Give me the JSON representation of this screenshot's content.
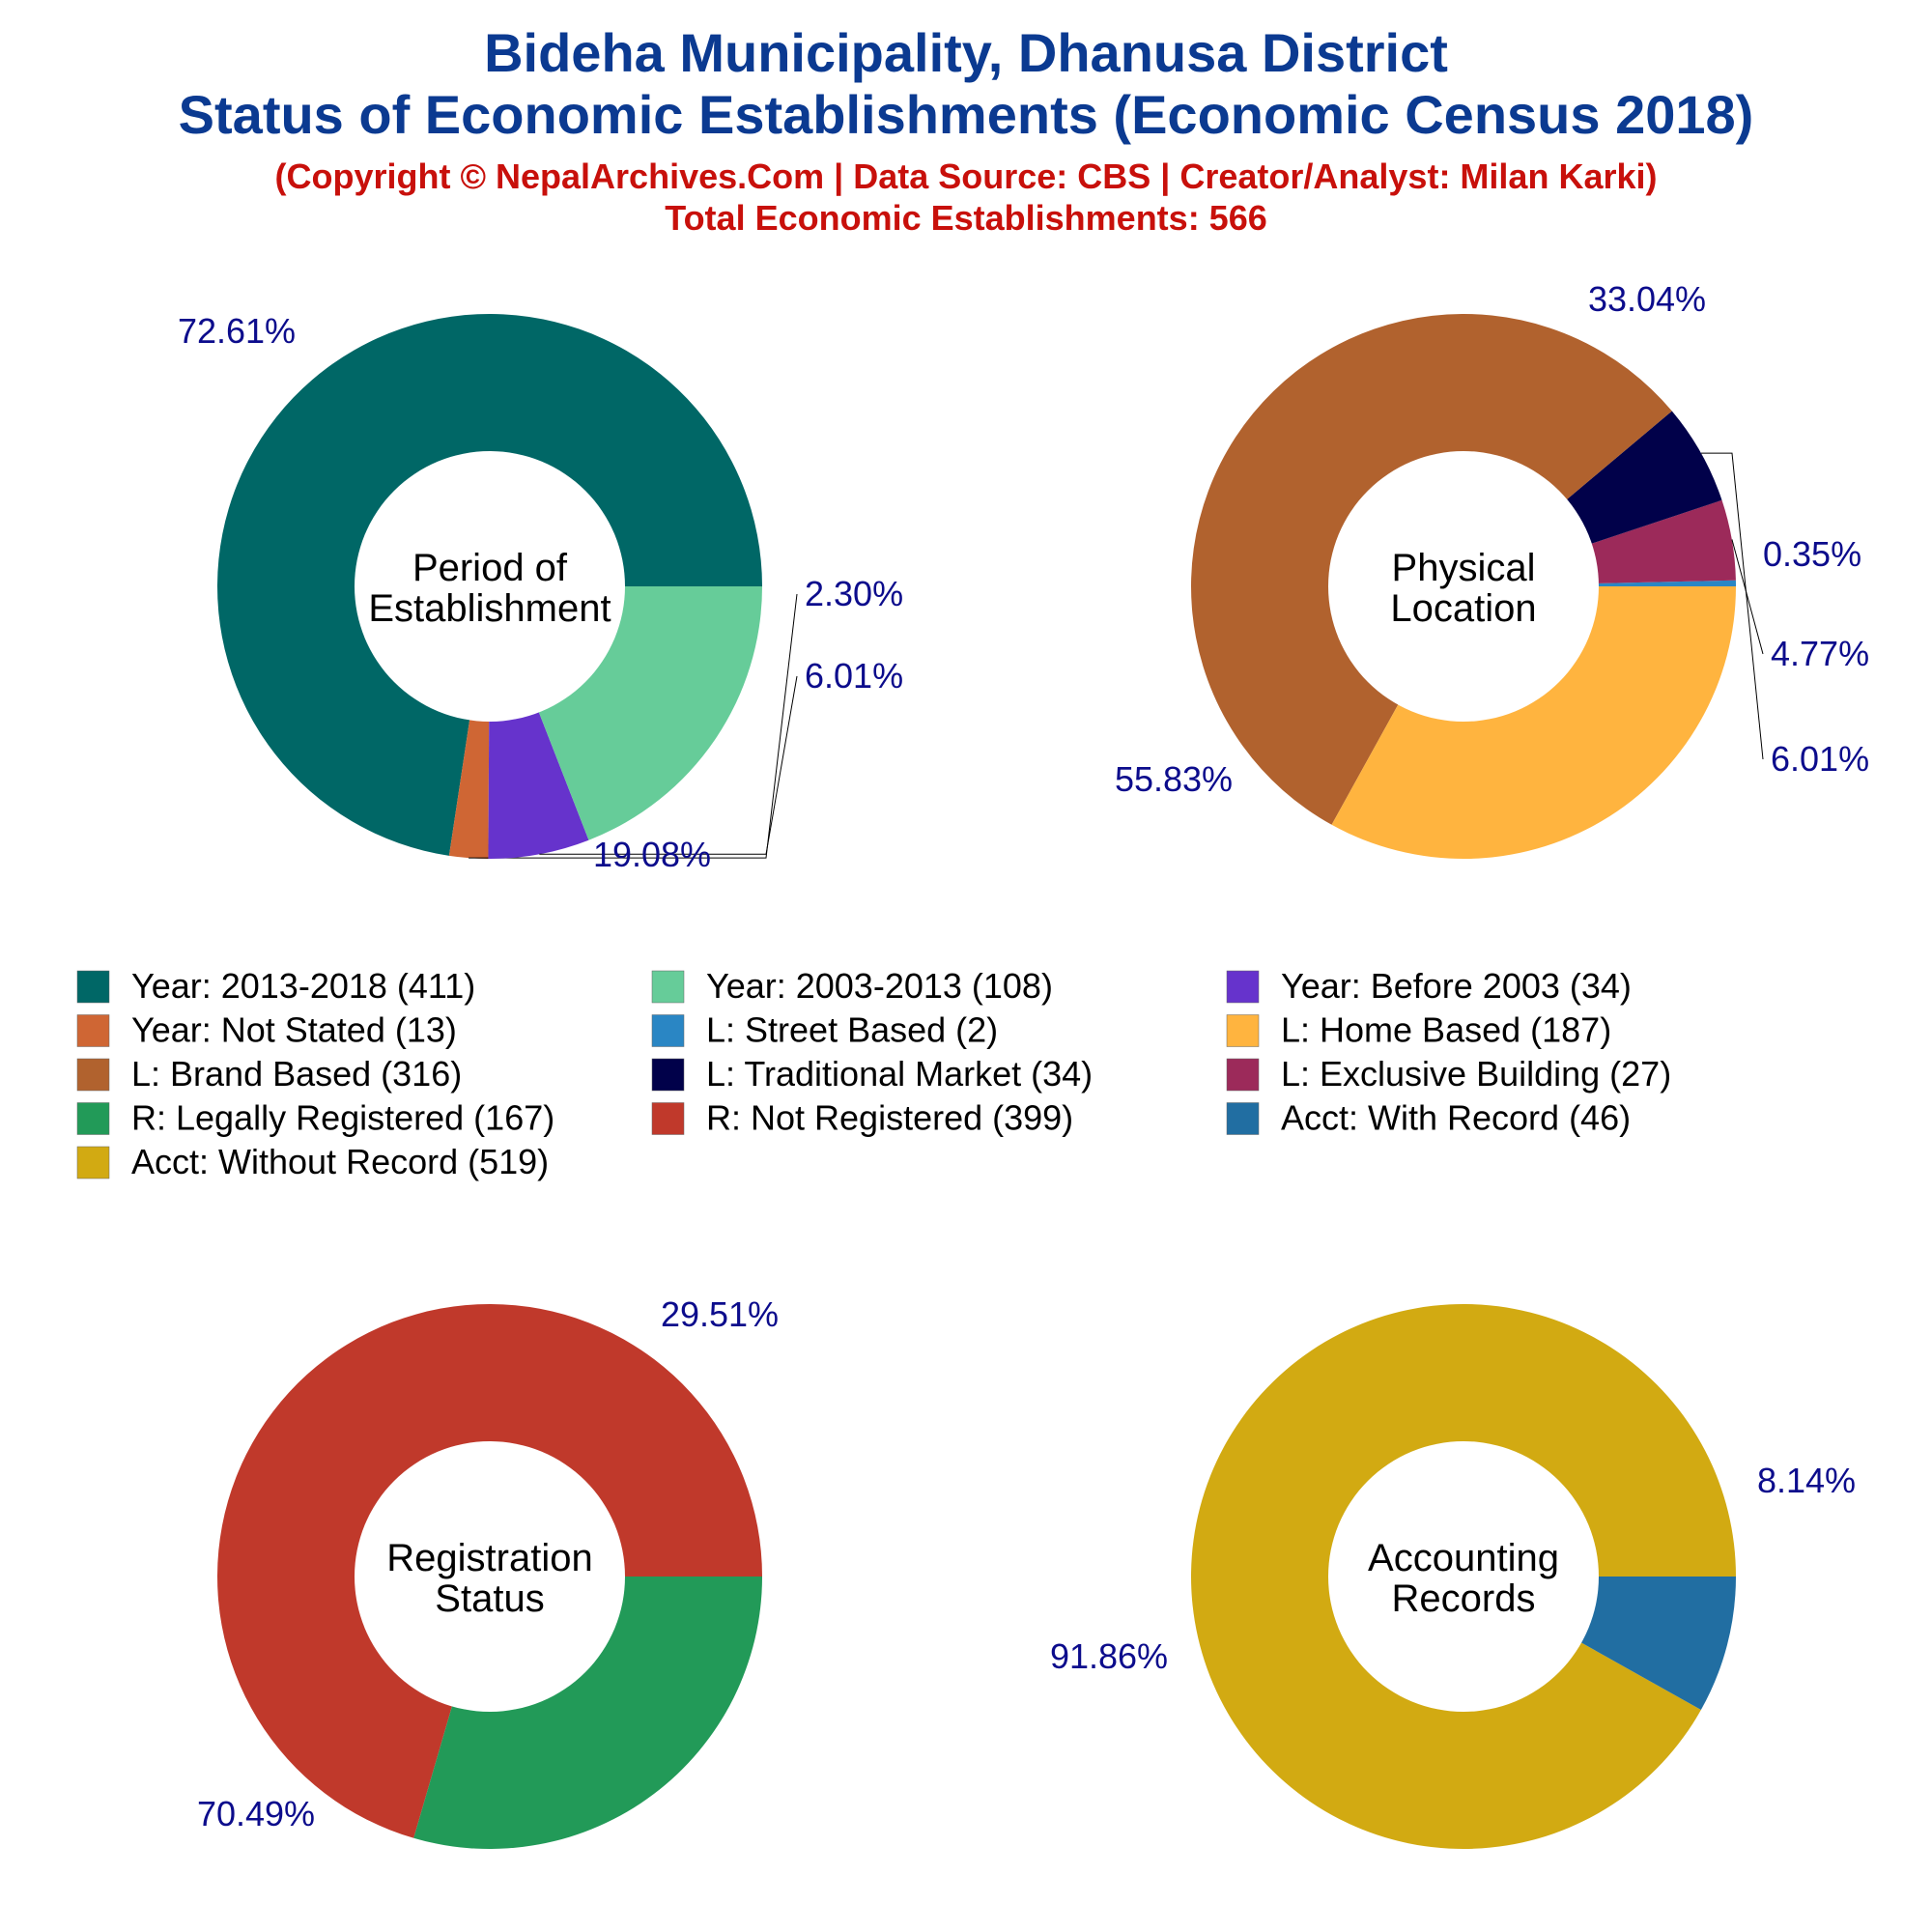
{
  "header": {
    "title_line1": "Bideha Municipality, Dhanusa District",
    "title_line2": "Status of Economic Establishments (Economic Census 2018)",
    "copyright": "(Copyright © NepalArchives.Com | Data Source: CBS | Creator/Analyst: Milan Karki)",
    "total": "Total Economic Establishments: 566"
  },
  "chart_data": [
    {
      "type": "pie",
      "center_label": [
        "Period of",
        "Establishment"
      ],
      "slices": [
        {
          "legend": "Year: 2013-2018 (411)",
          "value": 411,
          "pct_label": "72.61%",
          "color": "#006766"
        },
        {
          "legend": "Year: Not Stated (13)",
          "value": 13,
          "pct_label": "2.30%",
          "color": "#cf6634"
        },
        {
          "legend": "Year: Before 2003 (34)",
          "value": 34,
          "pct_label": "6.01%",
          "color": "#6633cc"
        },
        {
          "legend": "Year: 2003-2013 (108)",
          "value": 108,
          "pct_label": "19.08%",
          "color": "#66cc99"
        }
      ]
    },
    {
      "type": "pie",
      "center_label": [
        "Physical",
        "Location"
      ],
      "slices": [
        {
          "legend": "L: Street Based (2)",
          "value": 2,
          "pct_label": "0.35%",
          "color": "#2a86c4"
        },
        {
          "legend": "L: Exclusive Building (27)",
          "value": 27,
          "pct_label": "4.77%",
          "color": "#9c2a5a"
        },
        {
          "legend": "L: Traditional Market (34)",
          "value": 34,
          "pct_label": "6.01%",
          "color": "#01014a"
        },
        {
          "legend": "L: Brand Based (316)",
          "value": 316,
          "pct_label": "55.83%",
          "color": "#b1622e"
        },
        {
          "legend": "L: Home Based (187)",
          "value": 187,
          "pct_label": "33.04%",
          "color": "#ffb43f"
        }
      ]
    },
    {
      "type": "pie",
      "center_label": [
        "Registration",
        "Status"
      ],
      "slices": [
        {
          "legend": "R: Not Registered (399)",
          "value": 399,
          "pct_label": "70.49%",
          "color": "#c0392b"
        },
        {
          "legend": "R: Legally Registered (167)",
          "value": 167,
          "pct_label": "29.51%",
          "color": "#229a58"
        }
      ]
    },
    {
      "type": "pie",
      "center_label": [
        "Accounting",
        "Records"
      ],
      "slices": [
        {
          "legend": "Acct: Without Record (519)",
          "value": 519,
          "pct_label": "91.86%",
          "color": "#d2aa12"
        },
        {
          "legend": "Acct: With Record (46)",
          "value": 46,
          "pct_label": "8.14%",
          "color": "#216ea2"
        }
      ]
    }
  ],
  "legend": [
    {
      "label": "Year: 2013-2018 (411)",
      "color": "#006766"
    },
    {
      "label": "Year: 2003-2013 (108)",
      "color": "#66cc99"
    },
    {
      "label": "Year: Before 2003 (34)",
      "color": "#6633cc"
    },
    {
      "label": "Year: Not Stated (13)",
      "color": "#cf6634"
    },
    {
      "label": "L: Street Based (2)",
      "color": "#2a86c4"
    },
    {
      "label": "L: Home Based (187)",
      "color": "#ffb43f"
    },
    {
      "label": "L: Brand Based (316)",
      "color": "#b1622e"
    },
    {
      "label": "L: Traditional Market (34)",
      "color": "#01014a"
    },
    {
      "label": "L: Exclusive Building (27)",
      "color": "#9c2a5a"
    },
    {
      "label": "R: Legally Registered (167)",
      "color": "#229a58"
    },
    {
      "label": "R: Not Registered (399)",
      "color": "#c0392b"
    },
    {
      "label": "Acct: With Record (46)",
      "color": "#216ea2"
    },
    {
      "label": "Acct: Without Record (519)",
      "color": "#d2aa12"
    }
  ]
}
